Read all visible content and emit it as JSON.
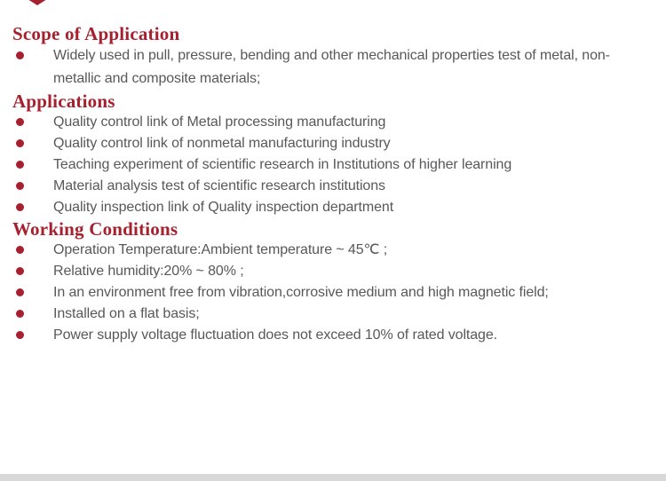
{
  "page": {
    "accent_color": "#a6202f",
    "body_text_color": "#58585a",
    "bottom_bar_color": "#d8d8d8",
    "background_color": "#ffffff"
  },
  "sections": [
    {
      "title": "Scope of Application",
      "items": [
        "Widely used in pull, pressure, bending and other mechanical properties test of metal, non-metallic and composite materials;"
      ]
    },
    {
      "title": "Applications",
      "items": [
        "Quality control link of Metal processing manufacturing",
        "Quality control link of nonmetal manufacturing industry",
        "Teaching experiment of scientific research in Institutions of higher learning",
        "Material analysis test of scientific research institutions",
        "Quality inspection link of Quality inspection department"
      ]
    },
    {
      "title": "Working Conditions",
      "items": [
        "Operation Temperature:Ambient temperature ~ 45℃ ;",
        "Relative humidity:20% ~ 80% ;",
        "In an environment free from vibration,corrosive medium and high magnetic field;",
        "Installed on a flat basis;",
        "Power supply voltage fluctuation does not exceed 10% of rated voltage."
      ]
    }
  ]
}
